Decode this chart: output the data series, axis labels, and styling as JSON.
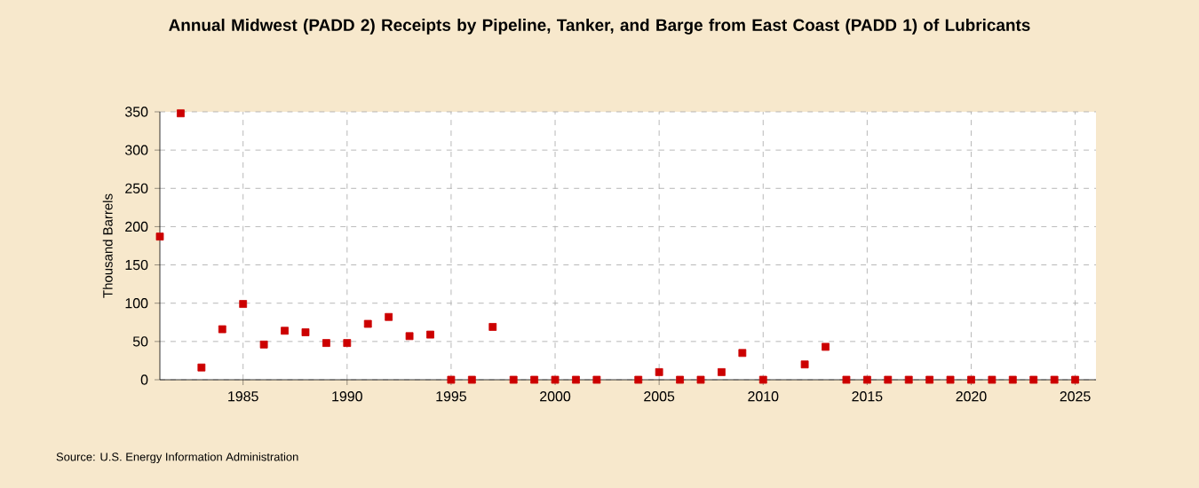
{
  "chart_data": {
    "type": "scatter",
    "title": "Annual Midwest (PADD 2) Receipts by Pipeline, Tanker, and Barge from East Coast (PADD 1) of Lubricants",
    "ylabel": "Thousand Barrels",
    "x": [
      1981,
      1982,
      1983,
      1984,
      1985,
      1986,
      1987,
      1988,
      1989,
      1990,
      1991,
      1992,
      1993,
      1994,
      1995,
      1996,
      1997,
      1998,
      1999,
      2000,
      2001,
      2002,
      2003,
      2004,
      2005,
      2006,
      2007,
      2008,
      2009,
      2010,
      2011,
      2012,
      2013,
      2014,
      2015,
      2016,
      2017,
      2018,
      2019,
      2020,
      2021,
      2022,
      2023,
      2024,
      2025
    ],
    "values": [
      187,
      348,
      16,
      66,
      99,
      46,
      64,
      62,
      48,
      48,
      73,
      82,
      57,
      59,
      0,
      0,
      69,
      0,
      0,
      0,
      0,
      0,
      null,
      0,
      10,
      0,
      0,
      10,
      35,
      0,
      null,
      20,
      43,
      0,
      0,
      0,
      0,
      0,
      0,
      0,
      0,
      0,
      0,
      0,
      0
    ],
    "color": "#cc0000",
    "marker": "square",
    "xlim": [
      1981,
      2026
    ],
    "ylim": [
      0,
      350
    ],
    "xticks": [
      1985,
      1990,
      1995,
      2000,
      2005,
      2010,
      2015,
      2020,
      2025
    ],
    "yticks": [
      0,
      50,
      100,
      150,
      200,
      250,
      300,
      350
    ],
    "grid": true,
    "annotations": [
      "Source: U.S. Energy Information Administration"
    ]
  }
}
